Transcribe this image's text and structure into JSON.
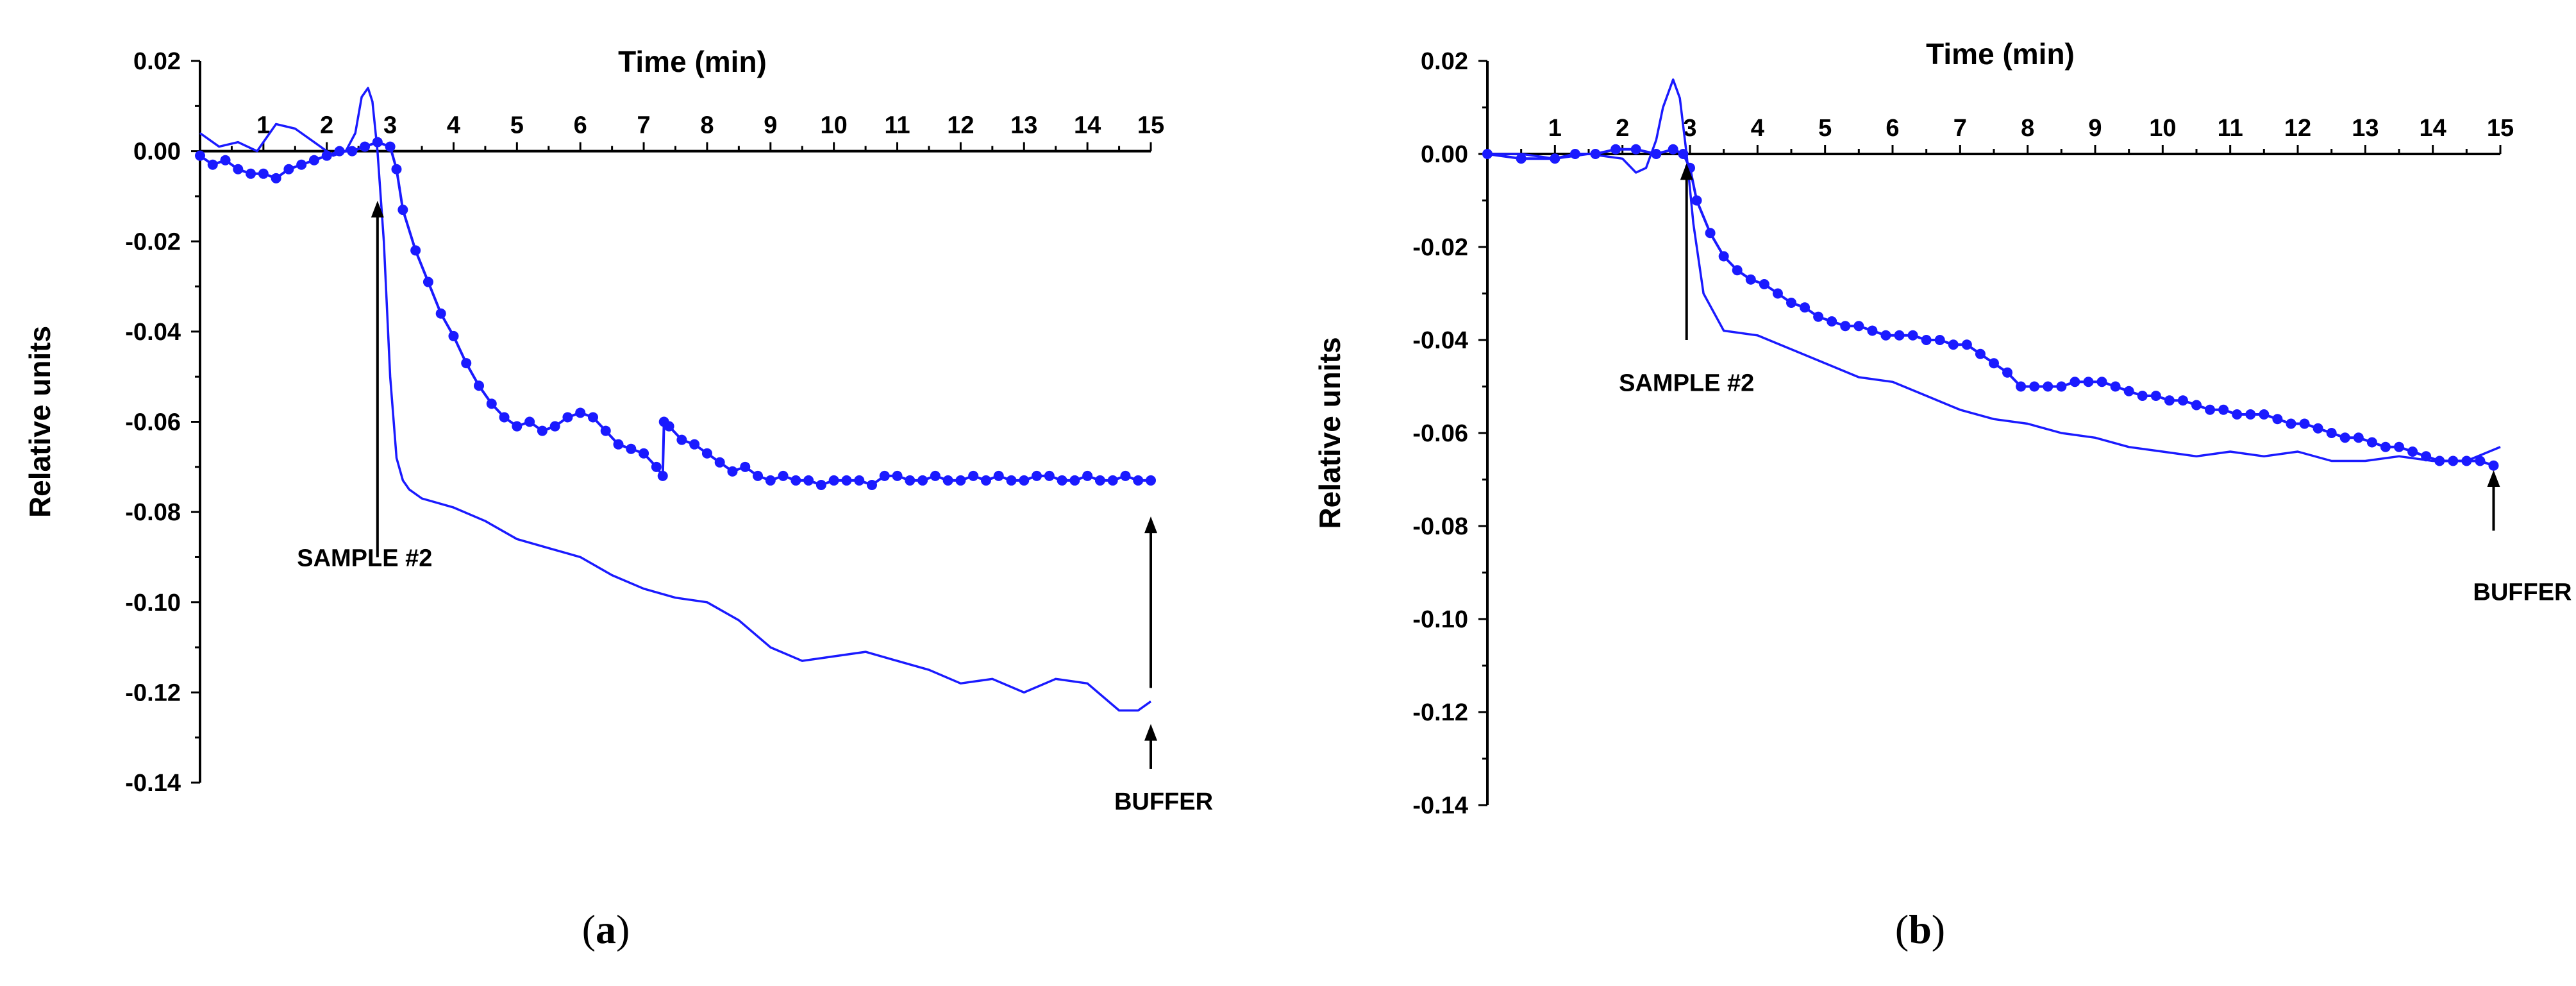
{
  "chart_data": [
    {
      "type": "line",
      "panel": "a",
      "caption": {
        "open": "(",
        "letter": "a",
        "close": ")"
      },
      "xlabel": "Time (min)",
      "ylabel": "Relative units",
      "xlim": [
        0,
        15
      ],
      "ylim": [
        -0.14,
        0.02
      ],
      "xticks": [
        1,
        2,
        3,
        4,
        5,
        6,
        7,
        8,
        9,
        10,
        11,
        12,
        13,
        14,
        15
      ],
      "xtick_labels": [
        "1",
        "2",
        "3",
        "4",
        "5",
        "6",
        "7",
        "8",
        "9",
        "10",
        "11",
        "12",
        "13",
        "14",
        "15"
      ],
      "yticks": [
        0.02,
        0.0,
        -0.02,
        -0.04,
        -0.06,
        -0.08,
        -0.1,
        -0.12,
        -0.14
      ],
      "ytick_labels": [
        "0.02",
        "0.00",
        "-0.02",
        "-0.04",
        "-0.06",
        "-0.08",
        "-0.10",
        "-0.12",
        "-0.14"
      ],
      "series": [
        {
          "name": "plain line",
          "color": "#1a1aff",
          "markers": false,
          "x": [
            0,
            0.3,
            0.6,
            0.9,
            1.2,
            1.5,
            1.8,
            2.1,
            2.3,
            2.45,
            2.55,
            2.65,
            2.72,
            2.8,
            2.9,
            3.0,
            3.1,
            3.2,
            3.3,
            3.5,
            4.0,
            4.5,
            5.0,
            5.5,
            6.0,
            6.5,
            7.0,
            7.5,
            8.0,
            8.5,
            9.0,
            9.5,
            10.0,
            10.5,
            11.0,
            11.5,
            12.0,
            12.5,
            13.0,
            13.5,
            14.0,
            14.5,
            14.8,
            15.0
          ],
          "y": [
            0.004,
            0.001,
            0.002,
            0.0,
            0.006,
            0.005,
            0.002,
            -0.001,
            0.0,
            0.004,
            0.012,
            0.014,
            0.011,
            0.0,
            -0.02,
            -0.05,
            -0.068,
            -0.073,
            -0.075,
            -0.077,
            -0.079,
            -0.082,
            -0.086,
            -0.088,
            -0.09,
            -0.094,
            -0.097,
            -0.099,
            -0.1,
            -0.104,
            -0.11,
            -0.113,
            -0.112,
            -0.111,
            -0.113,
            -0.115,
            -0.118,
            -0.117,
            -0.12,
            -0.117,
            -0.118,
            -0.124,
            -0.124,
            -0.122
          ]
        },
        {
          "name": "line with markers",
          "color": "#1a1aff",
          "markers": true,
          "x": [
            0,
            0.2,
            0.4,
            0.6,
            0.8,
            1.0,
            1.2,
            1.4,
            1.6,
            1.8,
            2.0,
            2.2,
            2.4,
            2.6,
            2.8,
            3.0,
            3.1,
            3.2,
            3.4,
            3.6,
            3.8,
            4.0,
            4.2,
            4.4,
            4.6,
            4.8,
            5.0,
            5.2,
            5.4,
            5.6,
            5.8,
            6.0,
            6.2,
            6.4,
            6.6,
            6.8,
            7.0,
            7.2,
            7.3,
            7.32,
            7.4,
            7.6,
            7.8,
            8.0,
            8.2,
            8.4,
            8.6,
            8.8,
            9.0,
            9.2,
            9.4,
            9.6,
            9.8,
            10.0,
            10.2,
            10.4,
            10.6,
            10.8,
            11.0,
            11.2,
            11.4,
            11.6,
            11.8,
            12.0,
            12.2,
            12.4,
            12.6,
            12.8,
            13.0,
            13.2,
            13.4,
            13.6,
            13.8,
            14.0,
            14.2,
            14.4,
            14.6,
            14.8,
            15.0
          ],
          "y": [
            -0.001,
            -0.003,
            -0.002,
            -0.004,
            -0.005,
            -0.005,
            -0.006,
            -0.004,
            -0.003,
            -0.002,
            -0.001,
            0.0,
            0.0,
            0.001,
            0.002,
            0.001,
            -0.004,
            -0.013,
            -0.022,
            -0.029,
            -0.036,
            -0.041,
            -0.047,
            -0.052,
            -0.056,
            -0.059,
            -0.061,
            -0.06,
            -0.062,
            -0.061,
            -0.059,
            -0.058,
            -0.059,
            -0.062,
            -0.065,
            -0.066,
            -0.067,
            -0.07,
            -0.072,
            -0.06,
            -0.061,
            -0.064,
            -0.065,
            -0.067,
            -0.069,
            -0.071,
            -0.07,
            -0.072,
            -0.073,
            -0.072,
            -0.073,
            -0.073,
            -0.074,
            -0.073,
            -0.073,
            -0.073,
            -0.074,
            -0.072,
            -0.072,
            -0.073,
            -0.073,
            -0.072,
            -0.073,
            -0.073,
            -0.072,
            -0.073,
            -0.072,
            -0.073,
            -0.073,
            -0.072,
            -0.072,
            -0.073,
            -0.073,
            -0.072,
            -0.073,
            -0.073,
            -0.072,
            -0.073,
            -0.073
          ]
        }
      ],
      "annotations": [
        {
          "id": "sample",
          "text": "SAMPLE #2",
          "x": 2.8,
          "arrow_from_y": -0.09,
          "arrow_to_y": -0.011,
          "text_y": -0.09
        },
        {
          "id": "buffer-upper",
          "text": "",
          "x": 15.0,
          "arrow_from_y": -0.119,
          "arrow_to_y": -0.081
        },
        {
          "id": "buffer",
          "text": "BUFFER",
          "x": 15.0,
          "arrow_from_y": -0.137,
          "arrow_to_y": -0.127,
          "text_y": -0.144
        }
      ]
    },
    {
      "type": "line",
      "panel": "b",
      "caption": {
        "open": "(",
        "letter": "b",
        "close": ")"
      },
      "xlabel": "Time (min)",
      "ylabel": "Relative units",
      "xlim": [
        0,
        15
      ],
      "ylim": [
        -0.14,
        0.02
      ],
      "xticks": [
        1,
        2,
        3,
        4,
        5,
        6,
        7,
        8,
        9,
        10,
        11,
        12,
        13,
        14,
        15
      ],
      "xtick_labels": [
        "1",
        "2",
        "3",
        "4",
        "5",
        "6",
        "7",
        "8",
        "9",
        "10",
        "11",
        "12",
        "13",
        "14",
        "15"
      ],
      "yticks": [
        0.02,
        0.0,
        -0.02,
        -0.04,
        -0.06,
        -0.08,
        -0.1,
        -0.12,
        -0.14
      ],
      "ytick_labels": [
        "0.02",
        "0.00",
        "-0.02",
        "-0.04",
        "-0.06",
        "-0.08",
        "-0.10",
        "-0.12",
        "-0.14"
      ],
      "series": [
        {
          "name": "plain line",
          "color": "#1a1aff",
          "markers": false,
          "x": [
            0,
            0.5,
            1.0,
            1.5,
            2.0,
            2.2,
            2.35,
            2.5,
            2.6,
            2.75,
            2.85,
            2.95,
            3.05,
            3.2,
            3.5,
            4.0,
            4.5,
            5.0,
            5.5,
            6.0,
            6.5,
            7.0,
            7.5,
            8.0,
            8.5,
            9.0,
            9.5,
            10.0,
            10.5,
            11.0,
            11.5,
            12.0,
            12.5,
            13.0,
            13.5,
            14.0,
            14.5,
            15.0
          ],
          "y": [
            0.0,
            0.0,
            -0.001,
            0.0,
            -0.001,
            -0.004,
            -0.003,
            0.003,
            0.01,
            0.016,
            0.012,
            0.0,
            -0.015,
            -0.03,
            -0.038,
            -0.039,
            -0.042,
            -0.045,
            -0.048,
            -0.049,
            -0.052,
            -0.055,
            -0.057,
            -0.058,
            -0.06,
            -0.061,
            -0.063,
            -0.064,
            -0.065,
            -0.064,
            -0.065,
            -0.064,
            -0.066,
            -0.066,
            -0.065,
            -0.066,
            -0.066,
            -0.063
          ]
        },
        {
          "name": "line with markers",
          "color": "#1a1aff",
          "markers": true,
          "x": [
            0,
            0.5,
            1.0,
            1.3,
            1.6,
            1.9,
            2.2,
            2.5,
            2.75,
            2.9,
            3.0,
            3.1,
            3.3,
            3.5,
            3.7,
            3.9,
            4.1,
            4.3,
            4.5,
            4.7,
            4.9,
            5.1,
            5.3,
            5.5,
            5.7,
            5.9,
            6.1,
            6.3,
            6.5,
            6.7,
            6.9,
            7.1,
            7.3,
            7.5,
            7.7,
            7.9,
            8.1,
            8.3,
            8.5,
            8.7,
            8.9,
            9.1,
            9.3,
            9.5,
            9.7,
            9.9,
            10.1,
            10.3,
            10.5,
            10.7,
            10.9,
            11.1,
            11.3,
            11.5,
            11.7,
            11.9,
            12.1,
            12.3,
            12.5,
            12.7,
            12.9,
            13.1,
            13.3,
            13.5,
            13.7,
            13.9,
            14.1,
            14.3,
            14.5,
            14.7,
            14.9
          ],
          "y": [
            0.0,
            -0.001,
            -0.001,
            0.0,
            0.0,
            0.001,
            0.001,
            0.0,
            0.001,
            0.0,
            -0.003,
            -0.01,
            -0.017,
            -0.022,
            -0.025,
            -0.027,
            -0.028,
            -0.03,
            -0.032,
            -0.033,
            -0.035,
            -0.036,
            -0.037,
            -0.037,
            -0.038,
            -0.039,
            -0.039,
            -0.039,
            -0.04,
            -0.04,
            -0.041,
            -0.041,
            -0.043,
            -0.045,
            -0.047,
            -0.05,
            -0.05,
            -0.05,
            -0.05,
            -0.049,
            -0.049,
            -0.049,
            -0.05,
            -0.051,
            -0.052,
            -0.052,
            -0.053,
            -0.053,
            -0.054,
            -0.055,
            -0.055,
            -0.056,
            -0.056,
            -0.056,
            -0.057,
            -0.058,
            -0.058,
            -0.059,
            -0.06,
            -0.061,
            -0.061,
            -0.062,
            -0.063,
            -0.063,
            -0.064,
            -0.065,
            -0.066,
            -0.066,
            -0.066,
            -0.066,
            -0.067
          ]
        }
      ],
      "annotations": [
        {
          "id": "sample",
          "text": "SAMPLE #2",
          "x": 2.95,
          "arrow_from_y": -0.04,
          "arrow_to_y": -0.002,
          "text_y": -0.049
        },
        {
          "id": "buffer",
          "text": "BUFFER",
          "x": 14.9,
          "arrow_from_y": -0.081,
          "arrow_to_y": -0.068,
          "text_y": -0.094
        }
      ]
    }
  ]
}
